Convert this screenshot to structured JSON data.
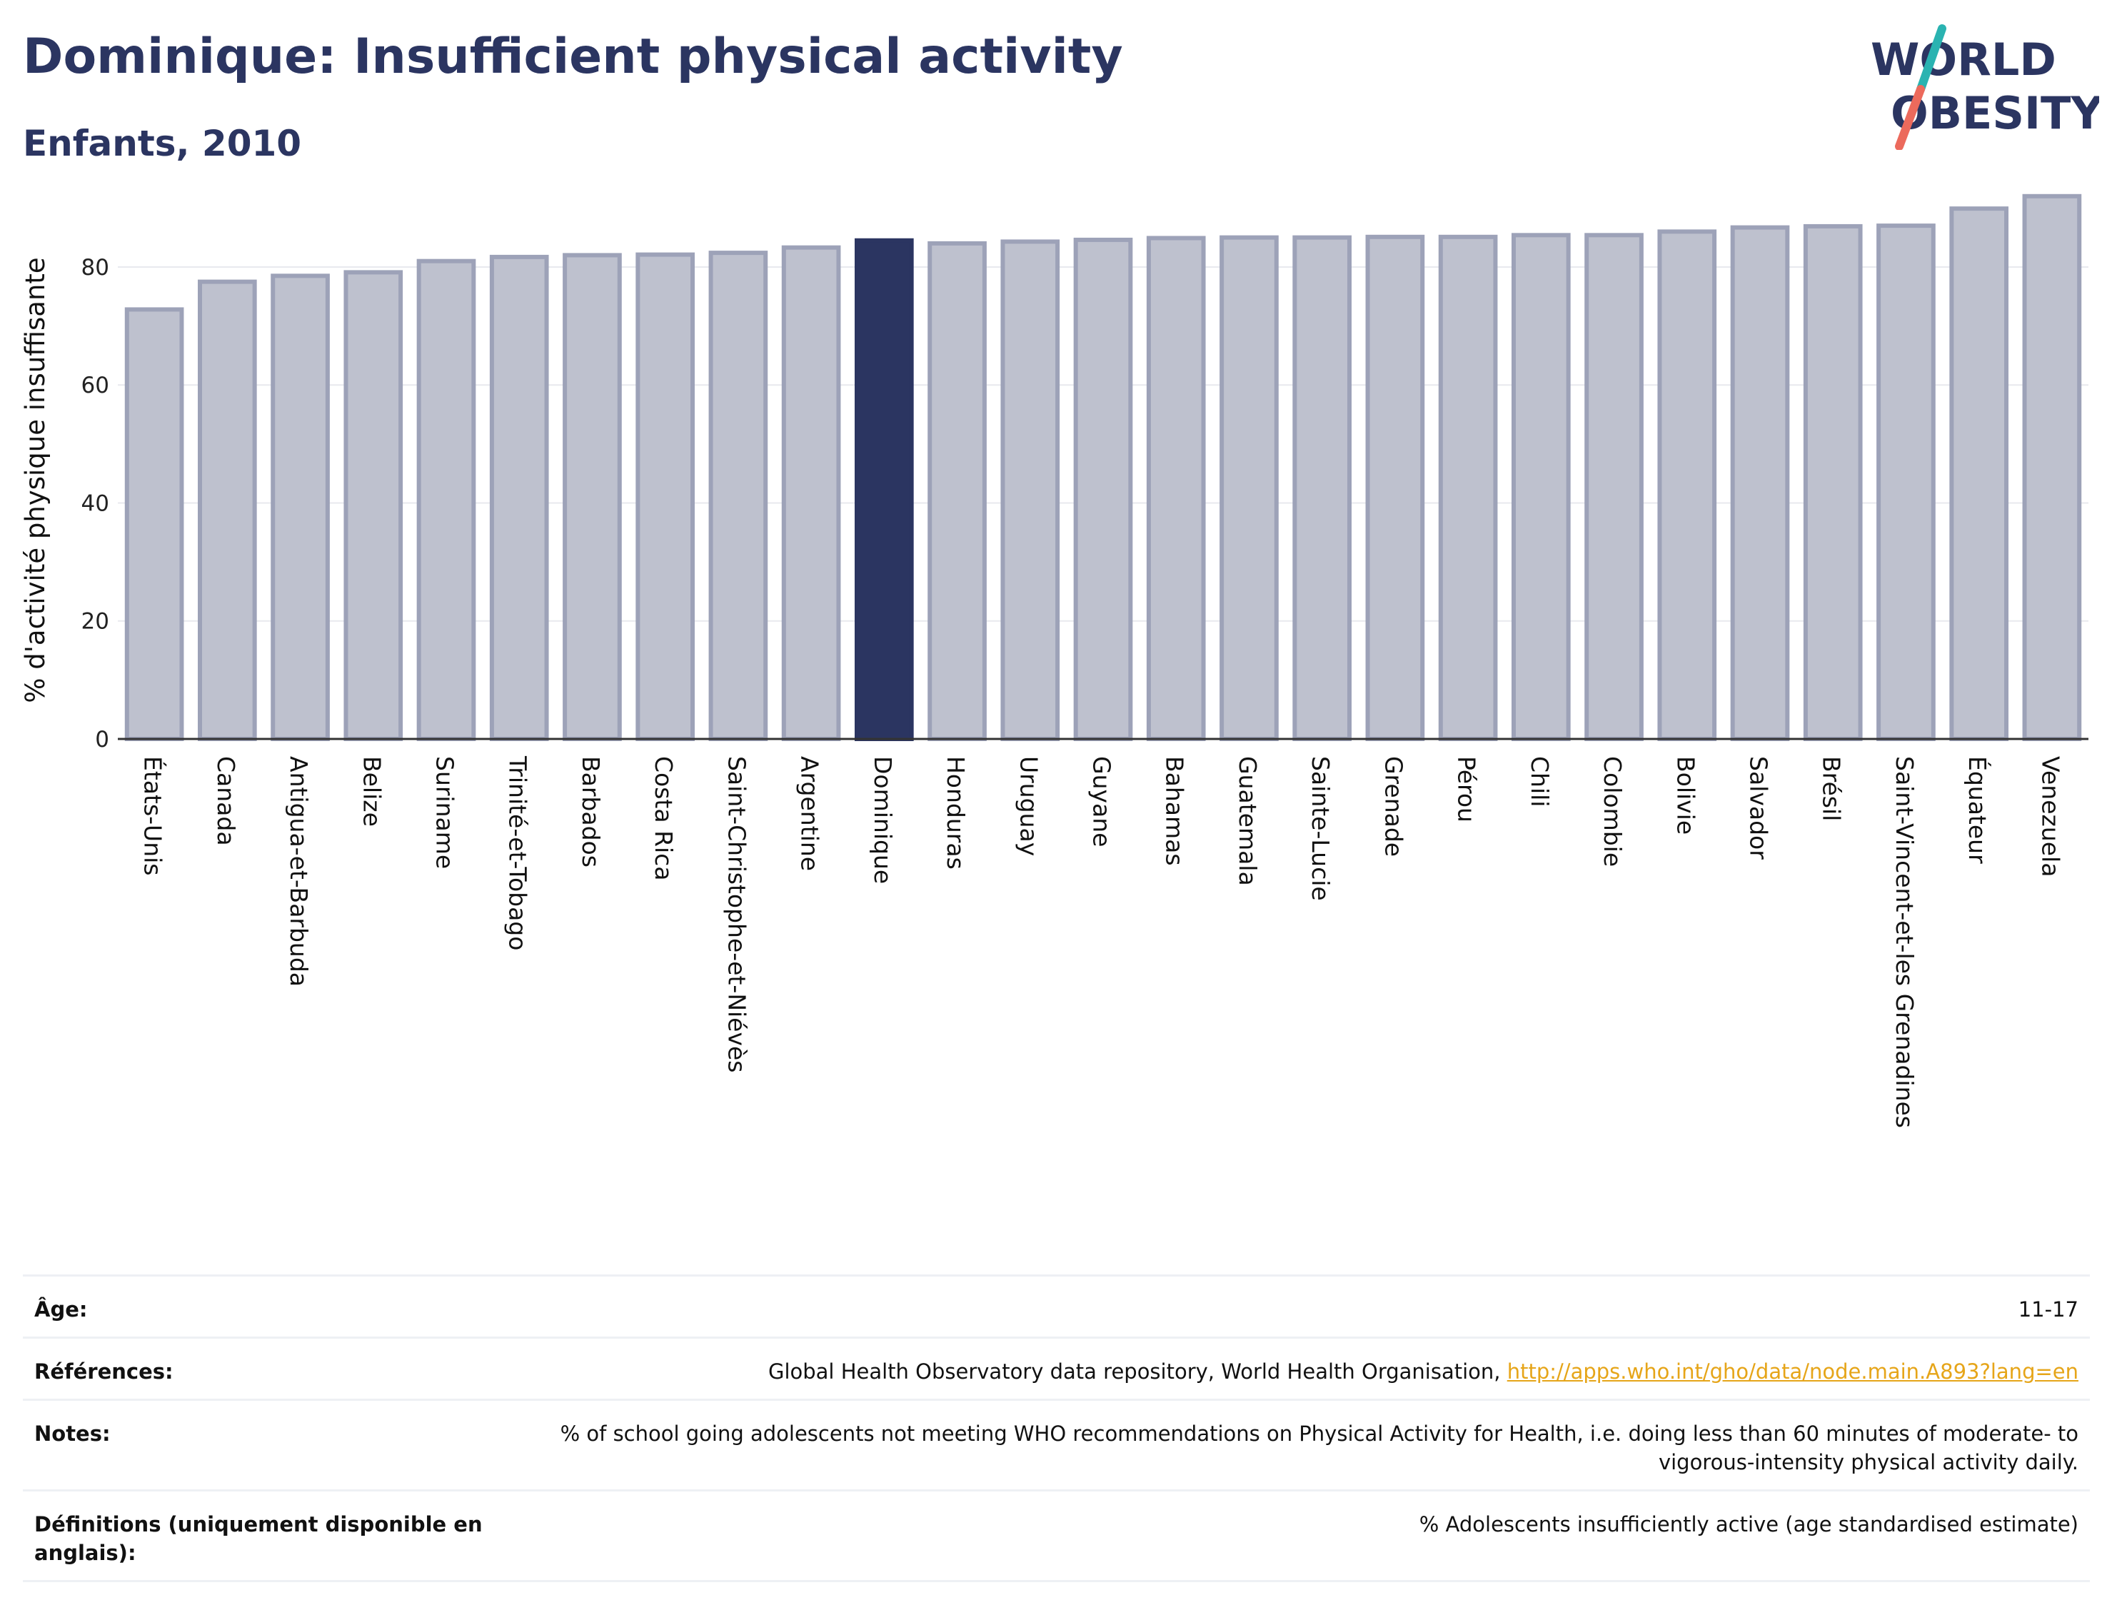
{
  "header": {
    "title": "Dominique: Insufficient physical activity",
    "subtitle": "Enfants, 2010"
  },
  "logo": {
    "line1": "WORLD",
    "line2": "OBESITY"
  },
  "colors": {
    "highlight": "#2b3561",
    "bar_fill": "#bec1ce",
    "bar_stroke": "#9da2b8",
    "title": "#2b3561",
    "link": "#e6a519",
    "logo_teal": "#2ab3b1",
    "logo_coral": "#ec6a5c"
  },
  "chart_data": {
    "type": "bar",
    "title": "",
    "xlabel": "",
    "ylabel": "% d'activité physique insuffisante",
    "ylim": [
      0,
      95
    ],
    "yticks": [
      0,
      20,
      40,
      60,
      80
    ],
    "grid": true,
    "highlight": "Dominique",
    "categories": [
      "États-Unis",
      "Canada",
      "Antigua-et-Barbuda",
      "Belize",
      "Suriname",
      "Trinité-et-Tobago",
      "Barbados",
      "Costa Rica",
      "Saint-Christophe-et-Niévès",
      "Argentine",
      "Dominique",
      "Honduras",
      "Uruguay",
      "Guyane",
      "Bahamas",
      "Guatemala",
      "Sainte-Lucie",
      "Grenade",
      "Pérou",
      "Chili",
      "Colombie",
      "Bolivie",
      "Salvador",
      "Brésil",
      "Saint-Vincent-et-les Grenadines",
      "Équateur",
      "Venezuela"
    ],
    "values": [
      72.8,
      77.5,
      78.5,
      79.1,
      81.0,
      81.7,
      82.0,
      82.1,
      82.4,
      83.3,
      84.5,
      84.0,
      84.3,
      84.6,
      84.9,
      85.0,
      85.0,
      85.1,
      85.1,
      85.4,
      85.4,
      86.0,
      86.7,
      86.9,
      87.0,
      89.9,
      92.0
    ]
  },
  "meta": [
    {
      "label": "Âge:",
      "value": "11-17"
    },
    {
      "label": "Références:",
      "value": "Global Health Observatory data repository, World Health Organisation,",
      "link": "http://apps.who.int/gho/data/node.main.A893?lang=en"
    },
    {
      "label": "Notes:",
      "value": "% of school going adolescents not meeting WHO recommendations on Physical Activity for Health, i.e. doing less than 60 minutes of moderate- to vigorous-intensity physical activity daily."
    },
    {
      "label": "Définitions (uniquement disponible en anglais):",
      "value": "% Adolescents insufficiently active (age standardised estimate)"
    }
  ]
}
